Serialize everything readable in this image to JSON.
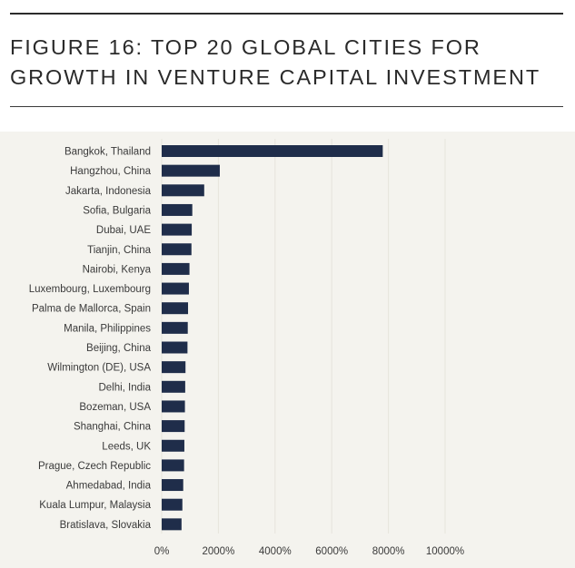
{
  "header": {
    "title_line1": "FIGURE 16: TOP 20 GLOBAL CITIES FOR",
    "title_line2": "GROWTH IN VENTURE CAPITAL INVESTMENT"
  },
  "colors": {
    "bar": "#1f2d4a",
    "gridline": "#e6e4dc",
    "panel": "#f4f3ee",
    "text": "#3a3a3a"
  },
  "chart_data": {
    "type": "bar",
    "orientation": "horizontal",
    "title": "FIGURE 16: TOP 20 GLOBAL CITIES FOR GROWTH IN VENTURE CAPITAL INVESTMENT",
    "xlabel": "",
    "ylabel": "",
    "categories": [
      "Bangkok, Thailand",
      "Hangzhou, China",
      "Jakarta, Indonesia",
      "Sofia, Bulgaria",
      "Dubai, UAE",
      "Tianjin, China",
      "Nairobi, Kenya",
      "Luxembourg, Luxembourg",
      "Palma de Mallorca, Spain",
      "Manila, Philippines",
      "Beijing, China",
      "Wilmington (DE), USA",
      "Delhi, India",
      "Bozeman, USA",
      "Shanghai, China",
      "Leeds, UK",
      "Prague, Czech Republic",
      "Ahmedabad, India",
      "Kuala Lumpur, Malaysia",
      "Bratislava, Slovakia"
    ],
    "values": [
      7800,
      2050,
      1500,
      1080,
      1060,
      1050,
      980,
      960,
      930,
      920,
      910,
      840,
      830,
      820,
      810,
      800,
      790,
      760,
      730,
      700
    ],
    "xlim": [
      0,
      10000
    ],
    "xticks": [
      0,
      2000,
      4000,
      6000,
      8000,
      10000
    ],
    "xtick_labels": [
      "0%",
      "2000%",
      "4000%",
      "6000%",
      "8000%",
      "10000%"
    ],
    "grid": "vertical",
    "legend": "none"
  }
}
